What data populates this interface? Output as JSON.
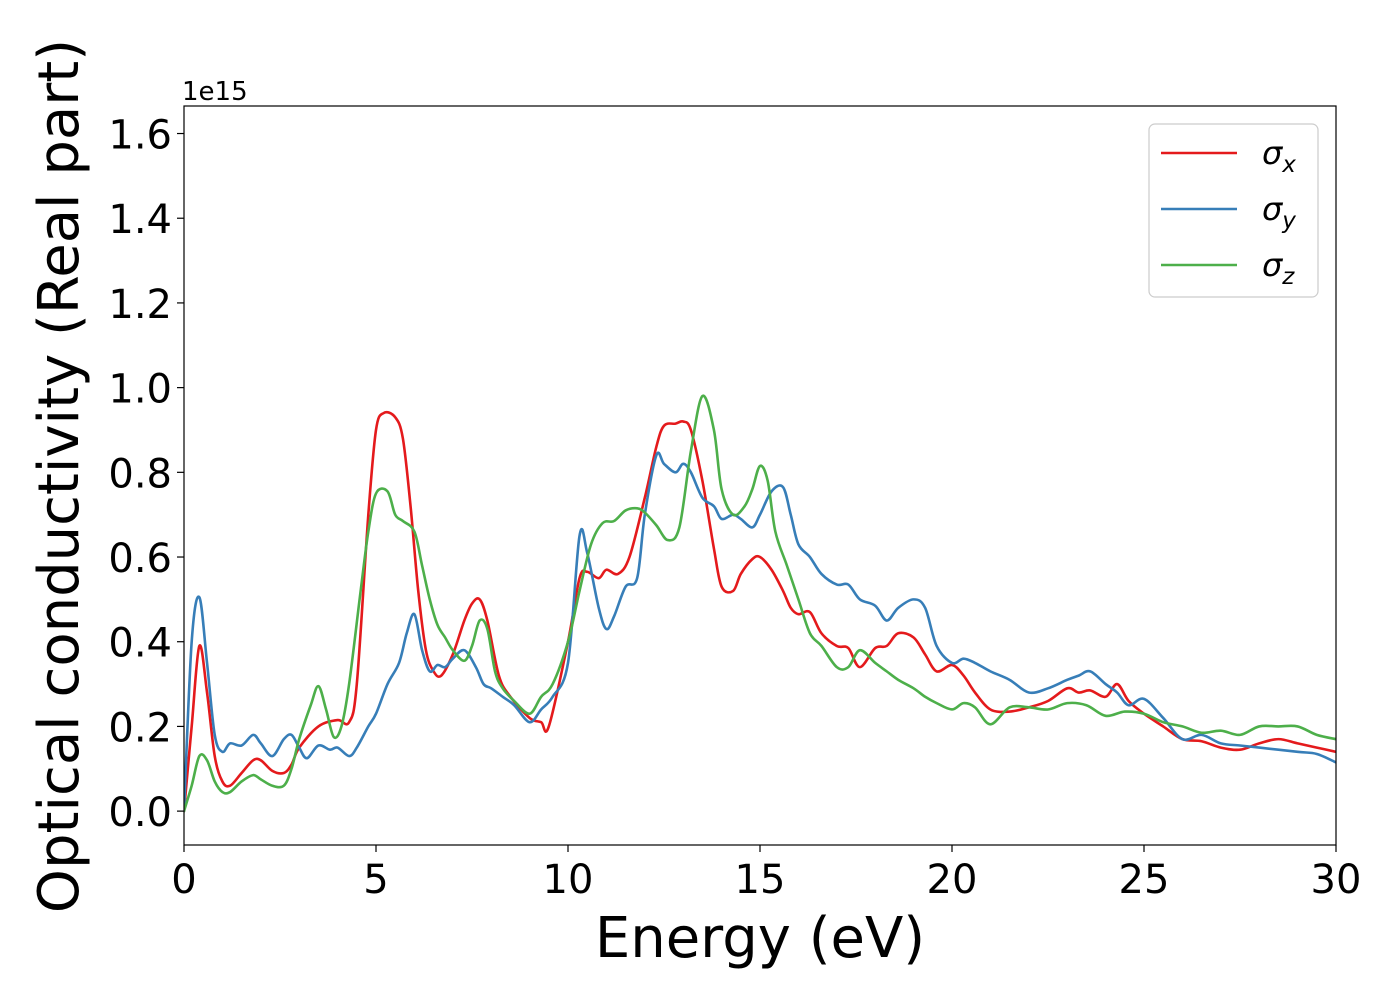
{
  "chart_data": {
    "type": "line",
    "xlabel": "Energy (eV)",
    "ylabel": "Optical conductivity (Real part)",
    "y_offset_text": "1e15",
    "xlim": [
      0,
      30
    ],
    "ylim": [
      -0.08,
      1.665
    ],
    "x_ticks": [
      0,
      5,
      10,
      15,
      20,
      25,
      30
    ],
    "x_tick_labels": [
      "0",
      "5",
      "10",
      "15",
      "20",
      "25",
      "30"
    ],
    "y_ticks": [
      0.0,
      0.2,
      0.4,
      0.6,
      0.8,
      1.0,
      1.2,
      1.4,
      1.6
    ],
    "y_tick_labels": [
      "0.0",
      "0.2",
      "0.4",
      "0.6",
      "0.8",
      "1.0",
      "1.2",
      "1.4",
      "1.6"
    ],
    "grid": false,
    "legend_position": "top-right",
    "series": [
      {
        "name": "σx",
        "symbol": "σ",
        "subscript": "x",
        "color": "#e41a1c",
        "x": [
          0,
          0.2,
          0.4,
          0.6,
          0.8,
          1.0,
          1.2,
          1.5,
          1.8,
          2.0,
          2.3,
          2.6,
          2.8,
          3.0,
          3.5,
          4.0,
          4.3,
          4.5,
          4.8,
          5.0,
          5.2,
          5.5,
          5.7,
          5.9,
          6.1,
          6.3,
          6.5,
          6.7,
          7.0,
          7.3,
          7.5,
          7.7,
          7.9,
          8.2,
          8.5,
          9.0,
          9.3,
          9.5,
          10.0,
          10.3,
          10.5,
          10.8,
          11.0,
          11.3,
          11.6,
          12.0,
          12.3,
          12.5,
          12.8,
          13.0,
          13.2,
          13.5,
          13.8,
          14.0,
          14.3,
          14.5,
          14.8,
          15.0,
          15.3,
          15.6,
          15.8,
          16.0,
          16.3,
          16.6,
          17.0,
          17.3,
          17.6,
          18.0,
          18.3,
          18.6,
          19.0,
          19.3,
          19.6,
          20.0,
          20.3,
          20.6,
          21.0,
          21.5,
          22.0,
          22.5,
          23.0,
          23.3,
          23.6,
          24.0,
          24.3,
          24.6,
          25.0,
          25.5,
          26.0,
          26.5,
          27.0,
          27.5,
          28.0,
          28.5,
          29.0,
          29.5,
          30.0
        ],
        "y": [
          0.0,
          0.2,
          0.39,
          0.28,
          0.13,
          0.07,
          0.06,
          0.09,
          0.12,
          0.12,
          0.095,
          0.09,
          0.11,
          0.15,
          0.2,
          0.215,
          0.21,
          0.3,
          0.7,
          0.9,
          0.94,
          0.93,
          0.88,
          0.72,
          0.52,
          0.38,
          0.33,
          0.32,
          0.37,
          0.45,
          0.49,
          0.5,
          0.45,
          0.32,
          0.27,
          0.22,
          0.21,
          0.2,
          0.4,
          0.55,
          0.565,
          0.55,
          0.57,
          0.56,
          0.6,
          0.74,
          0.86,
          0.91,
          0.915,
          0.92,
          0.9,
          0.78,
          0.62,
          0.53,
          0.52,
          0.56,
          0.595,
          0.6,
          0.57,
          0.52,
          0.48,
          0.465,
          0.47,
          0.42,
          0.39,
          0.385,
          0.34,
          0.385,
          0.39,
          0.42,
          0.41,
          0.37,
          0.33,
          0.345,
          0.32,
          0.28,
          0.24,
          0.235,
          0.245,
          0.26,
          0.29,
          0.28,
          0.285,
          0.27,
          0.3,
          0.26,
          0.23,
          0.2,
          0.17,
          0.165,
          0.15,
          0.145,
          0.16,
          0.17,
          0.16,
          0.15,
          0.14
        ]
      },
      {
        "name": "σy",
        "symbol": "σ",
        "subscript": "y",
        "color": "#377eb8",
        "x": [
          0,
          0.2,
          0.4,
          0.6,
          0.8,
          1.0,
          1.2,
          1.5,
          1.8,
          2.0,
          2.3,
          2.6,
          2.8,
          3.0,
          3.2,
          3.5,
          3.8,
          4.0,
          4.3,
          4.5,
          4.8,
          5.0,
          5.3,
          5.6,
          5.8,
          6.0,
          6.2,
          6.4,
          6.6,
          6.8,
          7.0,
          7.3,
          7.6,
          7.8,
          8.0,
          8.3,
          8.6,
          9.0,
          9.3,
          9.6,
          10.0,
          10.3,
          10.5,
          10.8,
          11.0,
          11.2,
          11.5,
          11.8,
          12.0,
          12.3,
          12.5,
          12.8,
          13.0,
          13.2,
          13.5,
          13.8,
          14.0,
          14.3,
          14.5,
          14.8,
          15.0,
          15.3,
          15.6,
          15.8,
          16.0,
          16.3,
          16.6,
          17.0,
          17.3,
          17.6,
          18.0,
          18.3,
          18.6,
          19.0,
          19.3,
          19.6,
          20.0,
          20.3,
          20.6,
          21.0,
          21.5,
          22.0,
          22.5,
          23.0,
          23.3,
          23.6,
          24.0,
          24.3,
          24.6,
          25.0,
          25.5,
          26.0,
          26.5,
          27.0,
          27.5,
          28.0,
          29.0,
          29.5,
          30.0
        ],
        "y": [
          0.0,
          0.4,
          0.505,
          0.35,
          0.18,
          0.14,
          0.16,
          0.155,
          0.18,
          0.16,
          0.13,
          0.17,
          0.18,
          0.15,
          0.125,
          0.155,
          0.145,
          0.15,
          0.13,
          0.15,
          0.2,
          0.23,
          0.3,
          0.35,
          0.42,
          0.465,
          0.38,
          0.33,
          0.345,
          0.34,
          0.36,
          0.38,
          0.34,
          0.3,
          0.29,
          0.27,
          0.25,
          0.21,
          0.24,
          0.27,
          0.35,
          0.65,
          0.61,
          0.48,
          0.43,
          0.46,
          0.53,
          0.55,
          0.7,
          0.84,
          0.82,
          0.8,
          0.82,
          0.8,
          0.74,
          0.72,
          0.69,
          0.7,
          0.69,
          0.67,
          0.7,
          0.755,
          0.765,
          0.7,
          0.63,
          0.6,
          0.56,
          0.535,
          0.535,
          0.5,
          0.485,
          0.45,
          0.48,
          0.5,
          0.48,
          0.39,
          0.35,
          0.36,
          0.35,
          0.33,
          0.31,
          0.28,
          0.29,
          0.31,
          0.32,
          0.33,
          0.3,
          0.28,
          0.25,
          0.265,
          0.22,
          0.17,
          0.18,
          0.16,
          0.155,
          0.15,
          0.14,
          0.135,
          0.115
        ]
      },
      {
        "name": "σz",
        "symbol": "σ",
        "subscript": "z",
        "color": "#4daf4a",
        "x": [
          0,
          0.2,
          0.4,
          0.6,
          0.8,
          1.0,
          1.2,
          1.5,
          1.8,
          2.0,
          2.3,
          2.6,
          2.8,
          3.0,
          3.3,
          3.5,
          3.7,
          3.9,
          4.1,
          4.3,
          4.6,
          4.8,
          5.0,
          5.3,
          5.5,
          5.7,
          6.0,
          6.2,
          6.4,
          6.6,
          6.8,
          7.0,
          7.3,
          7.5,
          7.7,
          7.9,
          8.1,
          8.3,
          8.6,
          9.0,
          9.3,
          9.6,
          10.0,
          10.3,
          10.6,
          10.9,
          11.2,
          11.5,
          11.8,
          12.0,
          12.3,
          12.6,
          12.9,
          13.2,
          13.5,
          13.8,
          14.0,
          14.3,
          14.6,
          14.8,
          15.0,
          15.2,
          15.4,
          15.7,
          16.0,
          16.3,
          16.6,
          17.0,
          17.3,
          17.6,
          18.0,
          18.3,
          18.6,
          19.0,
          19.3,
          19.6,
          20.0,
          20.3,
          20.6,
          21.0,
          21.5,
          22.0,
          22.5,
          23.0,
          23.5,
          24.0,
          24.5,
          25.0,
          25.5,
          26.0,
          26.5,
          27.0,
          27.5,
          28.0,
          28.5,
          29.0,
          29.5,
          30.0
        ],
        "y": [
          0.0,
          0.06,
          0.13,
          0.12,
          0.07,
          0.045,
          0.045,
          0.07,
          0.085,
          0.075,
          0.06,
          0.06,
          0.1,
          0.17,
          0.25,
          0.295,
          0.24,
          0.175,
          0.2,
          0.3,
          0.52,
          0.66,
          0.75,
          0.755,
          0.7,
          0.685,
          0.66,
          0.58,
          0.5,
          0.44,
          0.41,
          0.38,
          0.355,
          0.39,
          0.45,
          0.43,
          0.33,
          0.29,
          0.26,
          0.23,
          0.27,
          0.3,
          0.4,
          0.52,
          0.63,
          0.68,
          0.685,
          0.71,
          0.715,
          0.705,
          0.675,
          0.64,
          0.67,
          0.85,
          0.98,
          0.9,
          0.76,
          0.7,
          0.72,
          0.76,
          0.815,
          0.78,
          0.66,
          0.58,
          0.5,
          0.42,
          0.39,
          0.34,
          0.34,
          0.38,
          0.35,
          0.33,
          0.31,
          0.29,
          0.27,
          0.255,
          0.24,
          0.255,
          0.245,
          0.205,
          0.245,
          0.245,
          0.24,
          0.255,
          0.25,
          0.225,
          0.235,
          0.23,
          0.21,
          0.2,
          0.185,
          0.19,
          0.18,
          0.2,
          0.2,
          0.2,
          0.18,
          0.17
        ]
      }
    ]
  }
}
